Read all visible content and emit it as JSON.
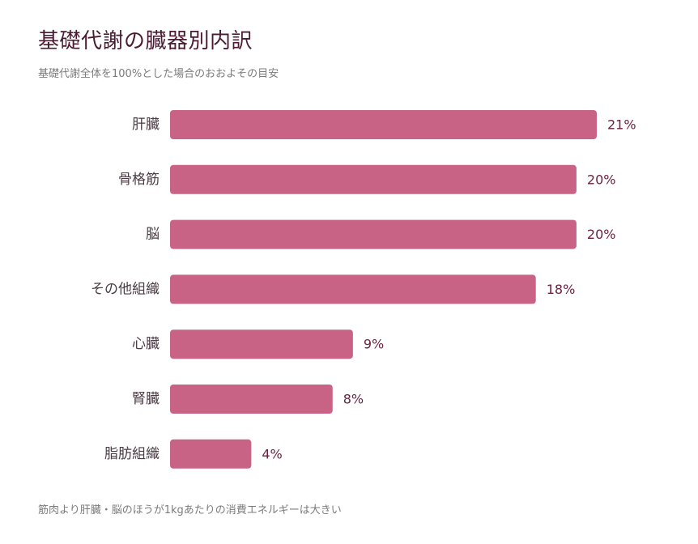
{
  "colors": {
    "bar": "#c86386",
    "title": "#4a1b33",
    "subtext": "#7b7b7b",
    "value_label": "#6b2140",
    "category_label": "#4a3b44"
  },
  "chart_data": {
    "type": "bar",
    "orientation": "horizontal",
    "title": "基礎代謝の臓器別内訳",
    "subtitle": "基礎代謝全体を100%とした場合のおおよその目安",
    "note": "筋肉より肝臓・脳のほうが1kgあたりの消費エネルギーは大きい",
    "categories": [
      "肝臓",
      "骨格筋",
      "脳",
      "その他組織",
      "心臓",
      "腎臓",
      "脂肪組織"
    ],
    "values": [
      21,
      20,
      20,
      18,
      9,
      8,
      4
    ],
    "value_labels": [
      "21%",
      "20%",
      "20%",
      "18%",
      "9%",
      "8%",
      "4%"
    ],
    "unit": "%",
    "xlim": [
      0,
      21
    ],
    "grid": false,
    "legend": "none"
  }
}
